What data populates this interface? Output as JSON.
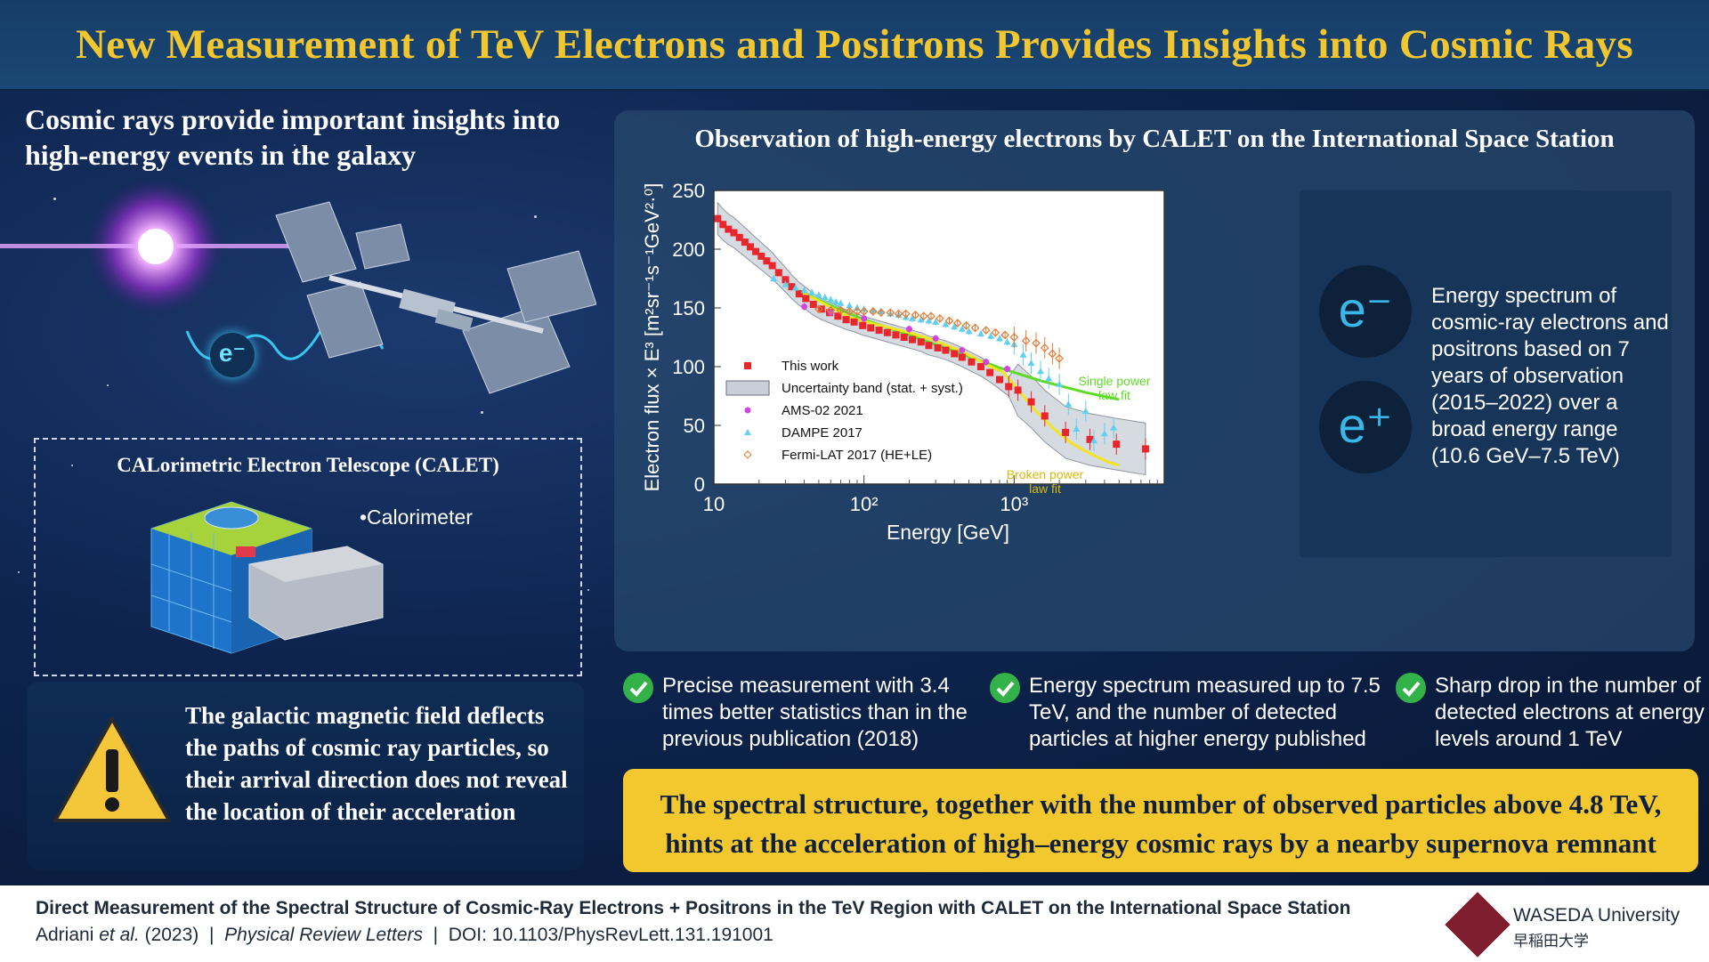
{
  "header": {
    "title": "New Measurement of TeV Electrons and Positrons Provides Insights into Cosmic Rays"
  },
  "left": {
    "title": "Cosmic rays provide important insights into high-energy events in the galaxy",
    "electron_label": "e⁻",
    "calet_title": "CALorimetric Electron Telescope (CALET)",
    "calorimeter_label": "•Calorimeter",
    "warning_text": "The galactic magnetic field deflects the paths of cosmic ray particles, so their arrival direction does not reveal the location of their acceleration"
  },
  "panel": {
    "title": "Observation of high-energy electrons by CALET on the International Space Station",
    "ep": {
      "electron": "e⁻",
      "positron": "e⁺",
      "description": "Energy spectrum of cosmic-ray electrons and positrons based on 7 years of observation (2015–2022) over a broad energy range (10.6 GeV–7.5 TeV)"
    }
  },
  "chart_data": {
    "type": "scatter",
    "xlabel": "Energy [GeV]",
    "ylabel": "Electron flux × E³ [m²sr⁻¹s⁻¹GeV²·⁰]",
    "x_scale": "log",
    "xlim": [
      10,
      10000
    ],
    "ylim": [
      0,
      250
    ],
    "x_ticks": [
      {
        "value": 10,
        "label": "10"
      },
      {
        "value": 100,
        "label": "10²"
      },
      {
        "value": 1000,
        "label": "10³"
      }
    ],
    "y_ticks": [
      0,
      50,
      100,
      150,
      200,
      250
    ],
    "legend_position": "bottom-left",
    "legend": [
      "This work",
      "Uncertainty band (stat. + syst.)",
      "AMS-02 2021",
      "DAMPE 2017",
      "Fermi-LAT 2017 (HE+LE)"
    ],
    "annotations": [
      {
        "text": "Single power law fit",
        "color": "#5ddb27"
      },
      {
        "text": "Broken power law fit",
        "color": "#f1e61f"
      }
    ],
    "series": [
      {
        "name": "This work",
        "color": "#e8262b",
        "x": [
          10.6,
          11.5,
          12.5,
          13.6,
          14.8,
          16.1,
          17.5,
          19,
          20.7,
          22.5,
          24.5,
          27,
          30,
          33,
          37,
          41,
          46,
          52,
          59,
          67,
          76,
          86,
          98,
          111,
          126,
          143,
          163,
          185,
          210,
          240,
          270,
          310,
          350,
          400,
          450,
          520,
          600,
          690,
          800,
          920,
          1060,
          1300,
          1600,
          2200,
          3200,
          4800,
          7500
        ],
        "y": [
          226,
          221,
          217,
          214,
          210,
          206,
          202,
          198,
          194,
          190,
          186,
          180,
          174,
          168,
          162,
          158,
          153,
          149,
          146,
          143,
          140,
          138,
          135,
          133,
          131,
          129,
          127,
          125,
          123,
          121,
          118,
          116,
          114,
          111,
          108,
          104,
          100,
          95,
          89,
          83,
          80,
          70,
          58,
          44,
          38,
          34,
          30
        ]
      },
      {
        "name": "AMS-02 2021",
        "color": "#d144e0",
        "x": [
          40,
          60,
          100,
          200,
          300,
          450,
          650,
          900
        ],
        "y": [
          151,
          146,
          141,
          132,
          124,
          114,
          104,
          98
        ]
      },
      {
        "name": "DAMPE 2017",
        "color": "#5fd0ef",
        "x": [
          25,
          30,
          35,
          40,
          45,
          50,
          55,
          60,
          65,
          70,
          80,
          90,
          100,
          115,
          130,
          150,
          170,
          190,
          210,
          240,
          270,
          300,
          350,
          400,
          450,
          500,
          600,
          700,
          800,
          900,
          1000,
          1150,
          1300,
          1500,
          1700,
          2000,
          2300,
          2600,
          3000,
          3400,
          4000,
          4600
        ],
        "y": [
          175,
          170,
          167,
          165,
          163,
          161,
          159,
          157,
          155,
          154,
          152,
          150,
          149,
          148,
          147,
          145,
          144,
          142,
          141,
          140,
          139,
          138,
          136,
          134,
          132,
          130,
          128,
          126,
          124,
          121,
          119,
          110,
          103,
          96,
          90,
          85,
          68,
          47,
          62,
          37,
          43,
          48
        ]
      },
      {
        "name": "Fermi-LAT 2017 (HE+LE)",
        "color": "#e27a34",
        "x": [
          50,
          60,
          70,
          80,
          90,
          100,
          115,
          130,
          150,
          170,
          190,
          220,
          250,
          280,
          320,
          370,
          420,
          480,
          550,
          650,
          750,
          870,
          1000,
          1200,
          1400,
          1600,
          1800,
          2000
        ],
        "y": [
          149,
          148,
          148,
          147,
          147,
          147,
          147,
          146,
          146,
          145,
          145,
          144,
          143,
          143,
          141,
          139,
          137,
          135,
          133,
          131,
          129,
          127,
          125,
          122,
          120,
          116,
          111,
          107
        ]
      }
    ],
    "fits": [
      {
        "name": "Single power law fit",
        "color": "#5ddb27",
        "x": [
          30,
          60,
          100,
          200,
          400,
          800,
          1500,
          3000,
          5000
        ],
        "y": [
          170,
          152,
          140,
          127,
          113,
          99,
          88,
          78,
          72
        ]
      },
      {
        "name": "Broken power law fit",
        "color": "#f1e61f",
        "x": [
          30,
          50,
          80,
          120,
          200,
          300,
          450,
          650,
          850,
          1100,
          1400,
          1800,
          2400,
          3200,
          4200,
          5000
        ],
        "y": [
          170,
          156,
          142,
          136,
          129,
          122,
          113,
          102,
          95,
          78,
          62,
          48,
          35,
          26,
          19,
          16
        ]
      }
    ]
  },
  "bullets": [
    "Precise measurement with 3.4 times better statistics than in the previous publication (2018)",
    "Energy spectrum measured up to 7.5 TeV, and the number of detected particles at higher energy published",
    "Sharp drop in the number of detected electrons at energy levels around 1 TeV"
  ],
  "conclusion": {
    "line1": "The spectral structure, together with the number of observed particles above 4.8 TeV,",
    "line2": "hints at the acceleration of high–energy cosmic rays by a nearby supernova remnant"
  },
  "footer": {
    "ref_title": "Direct Measurement of the Spectral Structure of Cosmic-Ray Electrons + Positrons in the TeV Region with CALET on the International Space Station",
    "ref_authors": "Adriani",
    "ref_etal": "et al.",
    "ref_year": " (2023)  |  ",
    "ref_journal": "Physical Review Letters",
    "ref_doi": "  |  DOI: 10.1103/PhysRevLett.131.191001",
    "uni_en": "WASEDA University",
    "uni_jp": "早稲田大学"
  },
  "colors": {
    "accent_yellow": "#f2c62e",
    "check_green": "#34b24a",
    "brand": "#7e1d2e"
  }
}
